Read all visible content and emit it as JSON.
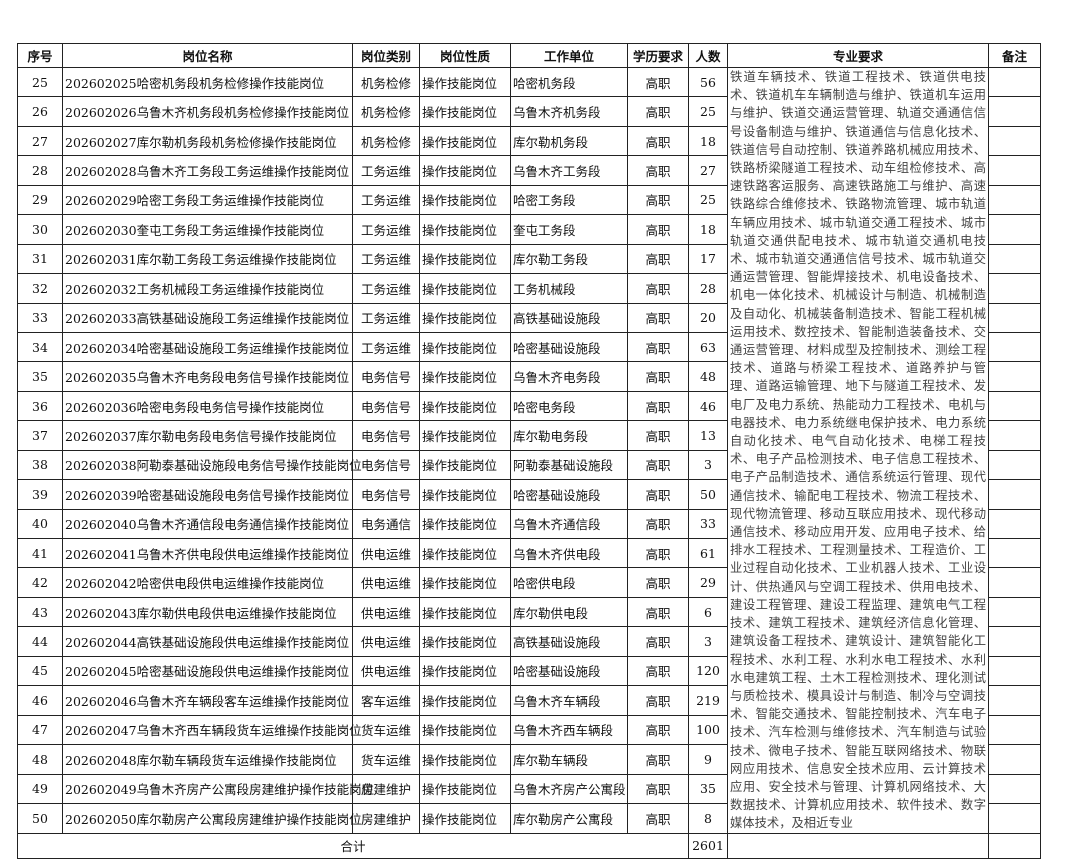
{
  "headers": [
    "序号",
    "岗位名称",
    "岗位类别",
    "岗位性质",
    "工作单位",
    "学历要求",
    "人数",
    "专业要求",
    "备注"
  ],
  "rows": [
    [
      "25",
      "202602025哈密机务段机务检修操作技能岗位",
      "机务检修",
      "操作技能岗位",
      "哈密机务段",
      "高职",
      "56"
    ],
    [
      "26",
      "202602026乌鲁木齐机务段机务检修操作技能岗位",
      "机务检修",
      "操作技能岗位",
      "乌鲁木齐机务段",
      "高职",
      "25"
    ],
    [
      "27",
      "202602027库尔勒机务段机务检修操作技能岗位",
      "机务检修",
      "操作技能岗位",
      "库尔勒机务段",
      "高职",
      "18"
    ],
    [
      "28",
      "202602028乌鲁木齐工务段工务运维操作技能岗位",
      "工务运维",
      "操作技能岗位",
      "乌鲁木齐工务段",
      "高职",
      "27"
    ],
    [
      "29",
      "202602029哈密工务段工务运维操作技能岗位",
      "工务运维",
      "操作技能岗位",
      "哈密工务段",
      "高职",
      "25"
    ],
    [
      "30",
      "202602030奎屯工务段工务运维操作技能岗位",
      "工务运维",
      "操作技能岗位",
      "奎屯工务段",
      "高职",
      "18"
    ],
    [
      "31",
      "202602031库尔勒工务段工务运维操作技能岗位",
      "工务运维",
      "操作技能岗位",
      "库尔勒工务段",
      "高职",
      "17"
    ],
    [
      "32",
      "202602032工务机械段工务运维操作技能岗位",
      "工务运维",
      "操作技能岗位",
      "工务机械段",
      "高职",
      "28"
    ],
    [
      "33",
      "202602033高铁基础设施段工务运维操作技能岗位",
      "工务运维",
      "操作技能岗位",
      "高铁基础设施段",
      "高职",
      "20"
    ],
    [
      "34",
      "202602034哈密基础设施段工务运维操作技能岗位",
      "工务运维",
      "操作技能岗位",
      "哈密基础设施段",
      "高职",
      "63"
    ],
    [
      "35",
      "202602035乌鲁木齐电务段电务信号操作技能岗位",
      "电务信号",
      "操作技能岗位",
      "乌鲁木齐电务段",
      "高职",
      "48"
    ],
    [
      "36",
      "202602036哈密电务段电务信号操作技能岗位",
      "电务信号",
      "操作技能岗位",
      "哈密电务段",
      "高职",
      "46"
    ],
    [
      "37",
      "202602037库尔勒电务段电务信号操作技能岗位",
      "电务信号",
      "操作技能岗位",
      "库尔勒电务段",
      "高职",
      "13"
    ],
    [
      "38",
      "202602038阿勒泰基础设施段电务信号操作技能岗位",
      "电务信号",
      "操作技能岗位",
      "阿勒泰基础设施段",
      "高职",
      "3"
    ],
    [
      "39",
      "202602039哈密基础设施段电务信号操作技能岗位",
      "电务信号",
      "操作技能岗位",
      "哈密基础设施段",
      "高职",
      "50"
    ],
    [
      "40",
      "202602040乌鲁木齐通信段电务通信操作技能岗位",
      "电务通信",
      "操作技能岗位",
      "乌鲁木齐通信段",
      "高职",
      "33"
    ],
    [
      "41",
      "202602041乌鲁木齐供电段供电运维操作技能岗位",
      "供电运维",
      "操作技能岗位",
      "乌鲁木齐供电段",
      "高职",
      "61"
    ],
    [
      "42",
      "202602042哈密供电段供电运维操作技能岗位",
      "供电运维",
      "操作技能岗位",
      "哈密供电段",
      "高职",
      "29"
    ],
    [
      "43",
      "202602043库尔勒供电段供电运维操作技能岗位",
      "供电运维",
      "操作技能岗位",
      "库尔勒供电段",
      "高职",
      "6"
    ],
    [
      "44",
      "202602044高铁基础设施段供电运维操作技能岗位",
      "供电运维",
      "操作技能岗位",
      "高铁基础设施段",
      "高职",
      "3"
    ],
    [
      "45",
      "202602045哈密基础设施段供电运维操作技能岗位",
      "供电运维",
      "操作技能岗位",
      "哈密基础设施段",
      "高职",
      "120"
    ],
    [
      "46",
      "202602046乌鲁木齐车辆段客车运维操作技能岗位",
      "客车运维",
      "操作技能岗位",
      "乌鲁木齐车辆段",
      "高职",
      "219"
    ],
    [
      "47",
      "202602047乌鲁木齐西车辆段货车运维操作技能岗位",
      "货车运维",
      "操作技能岗位",
      "乌鲁木齐西车辆段",
      "高职",
      "100"
    ],
    [
      "48",
      "202602048库尔勒车辆段货车运维操作技能岗位",
      "货车运维",
      "操作技能岗位",
      "库尔勒车辆段",
      "高职",
      "9"
    ],
    [
      "49",
      "202602049乌鲁木齐房产公寓段房建维护操作技能岗位",
      "房建维护",
      "操作技能岗位",
      "乌鲁木齐房产公寓段",
      "高职",
      "35"
    ],
    [
      "50",
      "202602050库尔勒房产公寓段房建维护操作技能岗位",
      "房建维护",
      "操作技能岗位",
      "库尔勒房产公寓段",
      "高职",
      "8"
    ]
  ],
  "spec": "铁道车辆技术、铁道工程技术、铁道供电技术、铁道机车车辆制造与维护、铁道机车运用与维护、铁道交通运营管理、轨道交通通信信号设备制造与维护、铁道通信与信息化技术、铁道信号自动控制、铁道养路机械应用技术、铁路桥梁隧道工程技术、动车组检修技术、高速铁路客运服务、高速铁路施工与维护、高速铁路综合维修技术、铁路物流管理、城市轨道车辆应用技术、城市轨道交通工程技术、城市轨道交通供配电技术、城市轨道交通机电技术、城市轨道交通通信信号技术、城市轨道交通运营管理、智能焊接技术、机电设备技术、机电一体化技术、机械设计与制造、机械制造及自动化、机械装备制造技术、智能工程机械运用技术、数控技术、智能制造装备技术、交通运营管理、材料成型及控制技术、测绘工程技术、道路与桥梁工程技术、道路养护与管理、道路运输管理、地下与隧道工程技术、发电厂及电力系统、热能动力工程技术、电机与电器技术、电力系统继电保护技术、电力系统自动化技术、电气自动化技术、电梯工程技术、电子产品检测技术、电子信息工程技术、电子产品制造技术、通信系统运行管理、现代通信技术、输配电工程技术、物流工程技术、现代物流管理、移动互联应用技术、现代移动通信技术、移动应用开发、应用电子技术、给排水工程技术、工程测量技术、工程造价、工业过程自动化技术、工业机器人技术、工业设计、供热通风与空调工程技术、供用电技术、建设工程管理、建设工程监理、建筑电气工程技术、建筑工程技术、建筑经济信息化管理、建筑设备工程技术、建筑设计、建筑智能化工程技术、水利工程、水利水电工程技术、水利水电建筑工程、土木工程检测技术、理化测试与质检技术、模具设计与制造、制冷与空调技术、智能交通技术、智能控制技术、汽车电子技术、汽车检测与维修技术、汽车制造与试验技术、微电子技术、智能互联网络技术、物联网应用技术、信息安全技术应用、云计算技术应用、安全技术与管理、计算机网络技术、大数据技术、计算机应用技术、软件技术、数字媒体技术，及相近专业",
  "total": {
    "label": "合计",
    "value": "2601"
  }
}
